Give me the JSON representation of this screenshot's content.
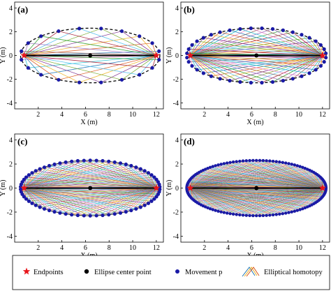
{
  "chart_data": [
    {
      "type": "line",
      "panel_label": "(a)",
      "xlabel": "X (m)",
      "ylabel": "Y (m)",
      "xlim": [
        0,
        12.6
      ],
      "ylim": [
        -4.5,
        4.5
      ],
      "xticks": [
        "2",
        "4",
        "6",
        "8",
        "10",
        "12"
      ],
      "yticks": [
        "4",
        "2",
        "0",
        "-2",
        "-4"
      ],
      "endpoints": [
        [
          0.8,
          0
        ],
        [
          12.0,
          0
        ]
      ],
      "center": [
        6.4,
        0
      ],
      "semi_axes": [
        5.9,
        2.3
      ],
      "movement_points": 20,
      "boundary_style": "dashed"
    },
    {
      "type": "line",
      "panel_label": "(b)",
      "xlabel": "X (m)",
      "ylabel": "Y (m)",
      "xlim": [
        0,
        12.6
      ],
      "ylim": [
        -4.5,
        4.5
      ],
      "xticks": [
        "2",
        "4",
        "6",
        "8",
        "10",
        "12"
      ],
      "yticks": [
        "4",
        "2",
        "0",
        "-2",
        "-4"
      ],
      "endpoints": [
        [
          0.8,
          0
        ],
        [
          12.0,
          0
        ]
      ],
      "center": [
        6.4,
        0
      ],
      "semi_axes": [
        5.9,
        2.3
      ],
      "movement_points": 40,
      "boundary_style": "dashed"
    },
    {
      "type": "line",
      "panel_label": "(c)",
      "xlabel": "X (m)",
      "ylabel": "Y (m)",
      "xlim": [
        0,
        12.6
      ],
      "ylim": [
        -4.5,
        4.5
      ],
      "xticks": [
        "2",
        "4",
        "6",
        "8",
        "10",
        "12"
      ],
      "yticks": [
        "4",
        "2",
        "0",
        "-2",
        "-4"
      ],
      "endpoints": [
        [
          0.8,
          0
        ],
        [
          12.0,
          0
        ]
      ],
      "center": [
        6.4,
        0
      ],
      "semi_axes": [
        5.9,
        2.3
      ],
      "movement_points": 70,
      "boundary_style": "solid"
    },
    {
      "type": "line",
      "panel_label": "(d)",
      "xlabel": "X (m)",
      "ylabel": "Y (m)",
      "xlim": [
        0,
        12.6
      ],
      "ylim": [
        -4.5,
        4.5
      ],
      "xticks": [
        "2",
        "4",
        "6",
        "8",
        "10",
        "12"
      ],
      "yticks": [
        "4",
        "2",
        "0",
        "-2",
        "-4"
      ],
      "endpoints": [
        [
          0.8,
          0
        ],
        [
          12.0,
          0
        ]
      ],
      "center": [
        6.4,
        0
      ],
      "semi_axes": [
        5.9,
        2.3
      ],
      "movement_points": 130,
      "boundary_style": "solid"
    }
  ],
  "legend": {
    "placement": "bottom",
    "items": [
      {
        "marker": "red-star",
        "label": "Endpoints"
      },
      {
        "marker": "black-dot",
        "label": "Ellipse center point"
      },
      {
        "marker": "blue-dot",
        "label": "Movement p"
      },
      {
        "marker": "colored-lines",
        "label": "Elliptical homotopy"
      }
    ]
  },
  "colors": {
    "endpoint": "#e8141a",
    "center": "#000000",
    "movement": "#1a1aa6",
    "line_palette": [
      "#1f77b4",
      "#d95319",
      "#edb120",
      "#7e2f8e",
      "#77ac30",
      "#4dbeee",
      "#a2142f",
      "#2ca02c",
      "#9467bd",
      "#8c564b",
      "#e377c2",
      "#17becf"
    ]
  }
}
